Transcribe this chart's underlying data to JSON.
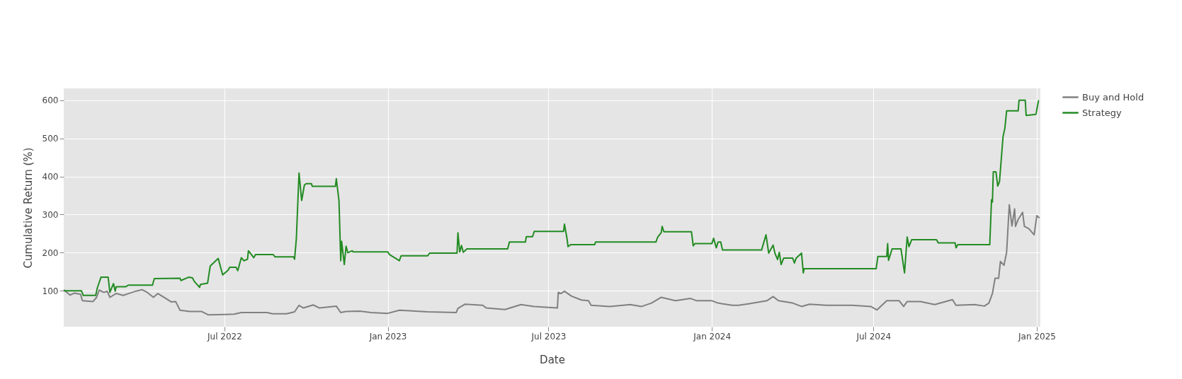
{
  "chart_data": {
    "type": "line",
    "xlabel": "Date",
    "ylabel": "Cumulative Return (%)",
    "xlim": [
      "2022-01-01",
      "2025-01-05"
    ],
    "xticks": [
      {
        "value": "2022-07-01",
        "label": "Jul 2022"
      },
      {
        "value": "2023-01-01",
        "label": "Jan 2023"
      },
      {
        "value": "2023-07-01",
        "label": "Jul 2023"
      },
      {
        "value": "2024-01-01",
        "label": "Jan 2024"
      },
      {
        "value": "2024-07-01",
        "label": "Jul 2024"
      },
      {
        "value": "2025-01-01",
        "label": "Jan 2025"
      }
    ],
    "ylim": [
      6,
      631
    ],
    "yticks": [
      100,
      200,
      300,
      400,
      500,
      600
    ],
    "grid": true,
    "legend": "top right",
    "marker": "none",
    "line_style": "solid",
    "series": [
      {
        "name": "Buy and Hold",
        "color": "#808080",
        "x": [
          "2022-01-01",
          "2022-01-08",
          "2022-01-13",
          "2022-01-20",
          "2022-01-22",
          "2022-02-03",
          "2022-02-07",
          "2022-02-10",
          "2022-02-15",
          "2022-02-19",
          "2022-02-22",
          "2022-03-01",
          "2022-03-09",
          "2022-03-15",
          "2022-03-23",
          "2022-03-30",
          "2022-04-05",
          "2022-04-12",
          "2022-04-17",
          "2022-04-26",
          "2022-05-02",
          "2022-05-07",
          "2022-05-12",
          "2022-05-23",
          "2022-06-05",
          "2022-06-13",
          "2022-07-02",
          "2022-07-12",
          "2022-07-20",
          "2022-08-18",
          "2022-08-24",
          "2022-09-09",
          "2022-09-18",
          "2022-09-23",
          "2022-09-28",
          "2022-10-09",
          "2022-10-16",
          "2022-11-04",
          "2022-11-09",
          "2022-11-15",
          "2022-11-30",
          "2022-12-13",
          "2023-01-01",
          "2023-01-14",
          "2023-01-22",
          "2023-02-15",
          "2023-03-19",
          "2023-03-21",
          "2023-03-29",
          "2023-04-18",
          "2023-04-22",
          "2023-05-13",
          "2023-05-31",
          "2023-06-15",
          "2023-07-11",
          "2023-07-12",
          "2023-07-15",
          "2023-07-19",
          "2023-07-27",
          "2023-08-07",
          "2023-08-15",
          "2023-08-18",
          "2023-09-08",
          "2023-10-01",
          "2023-10-14",
          "2023-10-25",
          "2023-11-05",
          "2023-11-21",
          "2023-12-08",
          "2023-12-15",
          "2024-01-01",
          "2024-01-08",
          "2024-01-24",
          "2024-01-31",
          "2024-02-11",
          "2024-03-03",
          "2024-03-10",
          "2024-03-16",
          "2024-04-01",
          "2024-04-11",
          "2024-04-20",
          "2024-05-09",
          "2024-06-07",
          "2024-06-28",
          "2024-07-05",
          "2024-07-16",
          "2024-07-30",
          "2024-08-04",
          "2024-08-08",
          "2024-08-23",
          "2024-09-08",
          "2024-09-28",
          "2024-10-02",
          "2024-10-23",
          "2024-11-03",
          "2024-11-08",
          "2024-11-12",
          "2024-11-15",
          "2024-11-19",
          "2024-11-21",
          "2024-11-25",
          "2024-11-28",
          "2024-12-01",
          "2024-12-04",
          "2024-12-07",
          "2024-12-08",
          "2024-12-11",
          "2024-12-16",
          "2024-12-18",
          "2024-12-23",
          "2024-12-29",
          "2025-01-01",
          "2025-01-04"
        ],
        "values": [
          103,
          89,
          94,
          91,
          74,
          72,
          83,
          102,
          96,
          99,
          83,
          93,
          88,
          93,
          99,
          103,
          96,
          83,
          93,
          80,
          71,
          72,
          49,
          46,
          46,
          37,
          38,
          39,
          43,
          43,
          40,
          40,
          45,
          62,
          55,
          63,
          55,
          60,
          43,
          46,
          47,
          43,
          41,
          49,
          48,
          45,
          43,
          54,
          65,
          62,
          55,
          51,
          64,
          59,
          55,
          96,
          93,
          99,
          86,
          76,
          74,
          62,
          59,
          64,
          59,
          68,
          83,
          74,
          80,
          74,
          74,
          68,
          62,
          62,
          66,
          74,
          85,
          74,
          68,
          59,
          65,
          62,
          62,
          59,
          50,
          74,
          74,
          59,
          72,
          72,
          64,
          77,
          62,
          64,
          60,
          68,
          93,
          133,
          133,
          177,
          167,
          201,
          326,
          270,
          315,
          269,
          287,
          306,
          269,
          263,
          247,
          297,
          291
        ]
      },
      {
        "name": "Strategy",
        "color": "#228b22",
        "x": [
          "2022-01-01",
          "2022-01-21",
          "2022-01-23",
          "2022-02-06",
          "2022-02-08",
          "2022-02-12",
          "2022-02-20",
          "2022-02-22",
          "2022-02-26",
          "2022-02-28",
          "2022-03-01",
          "2022-03-12",
          "2022-03-15",
          "2022-04-11",
          "2022-04-13",
          "2022-05-12",
          "2022-05-13",
          "2022-05-22",
          "2022-05-26",
          "2022-05-28",
          "2022-06-03",
          "2022-06-04",
          "2022-06-12",
          "2022-06-15",
          "2022-06-20",
          "2022-06-24",
          "2022-06-29",
          "2022-07-05",
          "2022-07-07",
          "2022-07-14",
          "2022-07-16",
          "2022-07-20",
          "2022-07-23",
          "2022-07-27",
          "2022-07-28",
          "2022-08-03",
          "2022-08-05",
          "2022-08-25",
          "2022-08-27",
          "2022-09-17",
          "2022-09-18",
          "2022-09-20",
          "2022-09-23",
          "2022-09-26",
          "2022-09-29",
          "2022-10-01",
          "2022-10-07",
          "2022-10-08",
          "2022-11-03",
          "2022-11-04",
          "2022-11-07",
          "2022-11-09",
          "2022-11-10",
          "2022-11-13",
          "2022-11-15",
          "2022-11-17",
          "2022-11-22",
          "2022-11-23",
          "2023-01-01",
          "2023-01-03",
          "2023-01-14",
          "2023-01-16",
          "2023-02-15",
          "2023-02-17",
          "2023-03-20",
          "2023-03-21",
          "2023-03-23",
          "2023-03-25",
          "2023-03-27",
          "2023-03-31",
          "2023-05-16",
          "2023-05-18",
          "2023-06-05",
          "2023-06-06",
          "2023-06-13",
          "2023-06-15",
          "2023-07-18",
          "2023-07-19",
          "2023-07-22",
          "2023-07-23",
          "2023-07-26",
          "2023-08-22",
          "2023-08-23",
          "2023-10-30",
          "2023-11-01",
          "2023-11-05",
          "2023-11-06",
          "2023-11-08",
          "2023-12-09",
          "2023-12-11",
          "2023-12-13",
          "2024-01-01",
          "2024-01-03",
          "2024-01-06",
          "2024-01-08",
          "2024-01-11",
          "2024-01-13",
          "2024-02-26",
          "2024-03-02",
          "2024-03-05",
          "2024-03-10",
          "2024-03-12",
          "2024-03-15",
          "2024-03-17",
          "2024-03-19",
          "2024-03-22",
          "2024-04-01",
          "2024-04-03",
          "2024-04-05",
          "2024-04-11",
          "2024-04-13",
          "2024-04-14",
          "2024-07-04",
          "2024-07-06",
          "2024-07-16",
          "2024-07-17",
          "2024-07-18",
          "2024-07-22",
          "2024-08-01",
          "2024-08-05",
          "2024-08-08",
          "2024-08-10",
          "2024-08-13",
          "2024-09-10",
          "2024-09-12",
          "2024-10-01",
          "2024-10-02",
          "2024-10-04",
          "2024-11-09",
          "2024-11-11",
          "2024-11-12",
          "2024-11-13",
          "2024-11-16",
          "2024-11-18",
          "2024-11-20",
          "2024-11-24",
          "2024-11-26",
          "2024-11-28",
          "2024-12-11",
          "2024-12-12",
          "2024-12-19",
          "2024-12-20",
          "2024-12-31",
          "2025-01-03"
        ],
        "values": [
          100,
          100,
          88,
          88,
          109,
          136,
          136,
          96,
          119,
          99,
          111,
          111,
          115,
          115,
          132,
          133,
          127,
          136,
          134,
          125,
          109,
          117,
          120,
          165,
          176,
          185,
          142,
          154,
          162,
          162,
          153,
          187,
          179,
          183,
          205,
          187,
          195,
          195,
          189,
          189,
          183,
          237,
          409,
          337,
          377,
          381,
          381,
          374,
          374,
          394,
          337,
          179,
          230,
          169,
          217,
          200,
          205,
          202,
          202,
          195,
          179,
          192,
          192,
          199,
          199,
          252,
          202,
          219,
          201,
          210,
          210,
          228,
          228,
          242,
          242,
          256,
          256,
          275,
          235,
          216,
          221,
          221,
          228,
          228,
          241,
          253,
          269,
          255,
          255,
          218,
          224,
          224,
          238,
          213,
          228,
          228,
          207,
          207,
          247,
          199,
          220,
          199,
          182,
          201,
          169,
          186,
          186,
          173,
          186,
          199,
          147,
          158,
          158,
          190,
          190,
          224,
          180,
          210,
          210,
          147,
          241,
          216,
          234,
          234,
          226,
          226,
          213,
          221,
          221,
          339,
          333,
          412,
          412,
          375,
          387,
          505,
          526,
          572,
          572,
          600,
          600,
          560,
          563,
          600
        ]
      }
    ]
  }
}
